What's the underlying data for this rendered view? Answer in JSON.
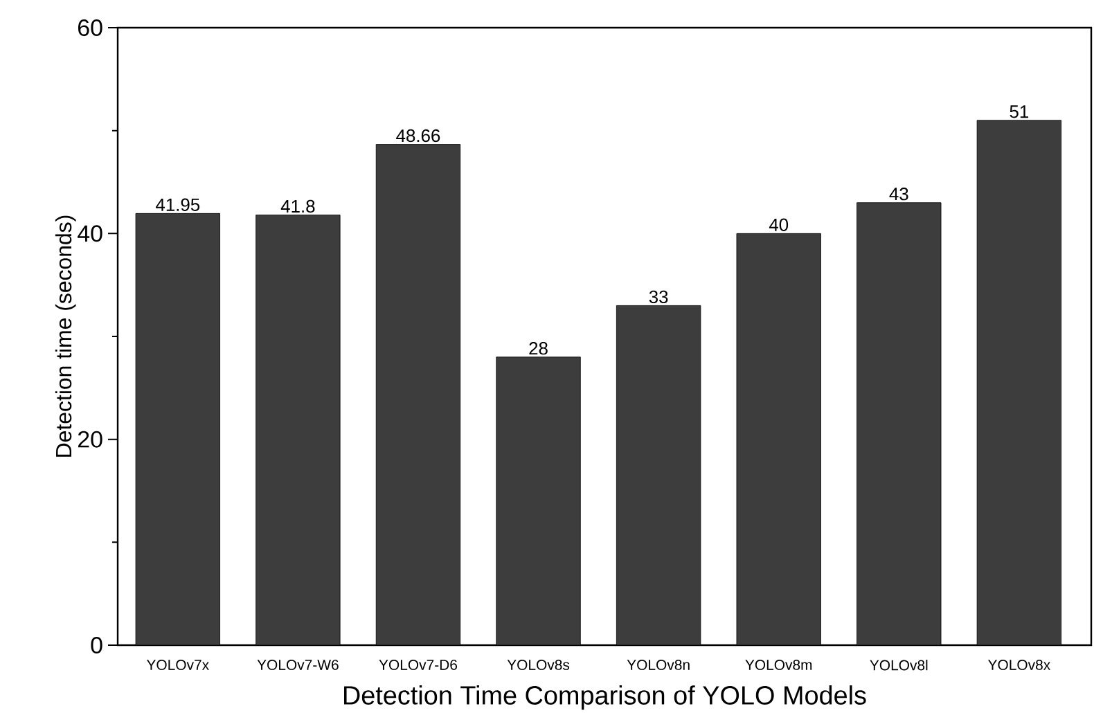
{
  "chart_data": {
    "type": "bar",
    "xlabel": "Detection Time Comparison of YOLO Models",
    "ylabel": "Detection time (seconds)",
    "categories": [
      "YOLOv7x",
      "YOLOv7-W6",
      "YOLOv7-D6",
      "YOLOv8s",
      "YOLOv8n",
      "YOLOv8m",
      "YOLOv8l",
      "YOLOv8x"
    ],
    "values": [
      41.95,
      41.8,
      48.66,
      28,
      33,
      40,
      43,
      51
    ],
    "color": "#3d3d3d",
    "data_labels": true,
    "ylim": [
      0,
      60
    ],
    "yticks": [
      0,
      20,
      40,
      60
    ]
  }
}
